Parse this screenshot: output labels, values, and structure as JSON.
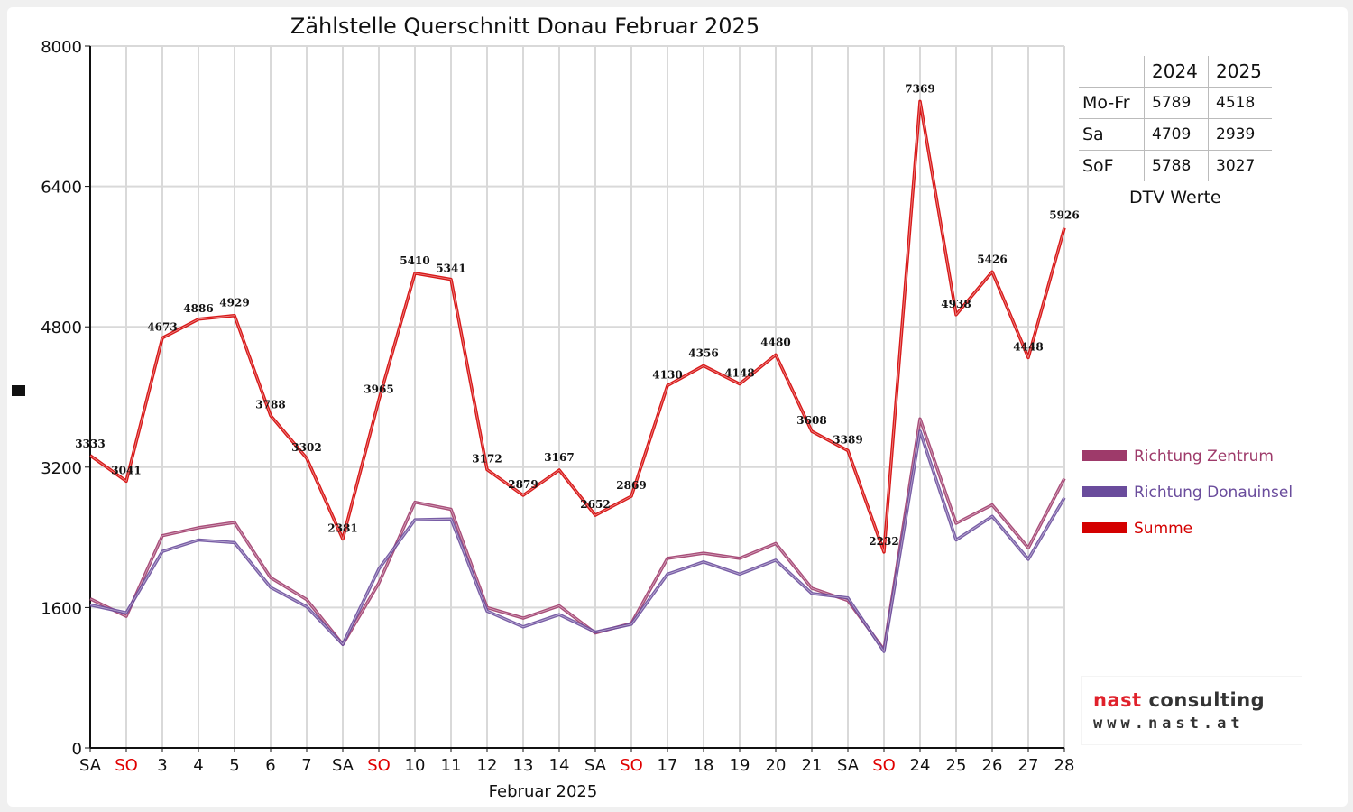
{
  "chart_data": {
    "type": "line",
    "title": "Zählstelle Querschnitt Donau Februar 2025",
    "xlabel": "Februar 2025",
    "ylabel": "",
    "ylim": [
      0,
      8000
    ],
    "yticks": [
      0,
      1600,
      3200,
      4800,
      6400,
      8000
    ],
    "grid": true,
    "legend_position": "right",
    "categories": [
      "SA",
      "SO",
      "3",
      "4",
      "5",
      "6",
      "7",
      "SA",
      "SO",
      "10",
      "11",
      "12",
      "13",
      "14",
      "SA",
      "SO",
      "17",
      "18",
      "19",
      "20",
      "21",
      "SA",
      "SO",
      "24",
      "25",
      "26",
      "27",
      "28"
    ],
    "red_categories": [
      1,
      8,
      15,
      22
    ],
    "series": [
      {
        "name": "Richtung Zentrum",
        "color": "#9e3a6a",
        "values": [
          1700,
          1500,
          2420,
          2510,
          2570,
          1940,
          1690,
          1180,
          1880,
          2800,
          2720,
          1600,
          1480,
          1620,
          1310,
          1420,
          2160,
          2220,
          2160,
          2330,
          1820,
          1680,
          1120,
          3750,
          2560,
          2770,
          2280,
          3070
        ]
      },
      {
        "name": "Richtung Donauinsel",
        "color": "#6a4c9c",
        "values": [
          1630,
          1540,
          2240,
          2370,
          2340,
          1830,
          1610,
          1180,
          2040,
          2600,
          2610,
          1560,
          1380,
          1520,
          1320,
          1410,
          1980,
          2120,
          1980,
          2140,
          1760,
          1710,
          1100,
          3610,
          2370,
          2640,
          2150,
          2850
        ]
      },
      {
        "name": "Summe",
        "color": "#d40000",
        "values": [
          3333,
          3041,
          4673,
          4886,
          4929,
          3788,
          3302,
          2381,
          3965,
          5410,
          5341,
          3172,
          2879,
          3167,
          2652,
          2869,
          4130,
          4356,
          4148,
          4480,
          3608,
          3389,
          2232,
          7369,
          4938,
          5426,
          4448,
          5926
        ]
      }
    ]
  },
  "dtv_table": {
    "caption": "DTV Werte",
    "columns": [
      "2024",
      "2025"
    ],
    "rows": [
      {
        "label": "Mo-Fr",
        "v2024": "5789",
        "v2025": "4518"
      },
      {
        "label": "Sa",
        "v2024": "4709",
        "v2025": "2939"
      },
      {
        "label": "SoF",
        "v2024": "5788",
        "v2025": "3027"
      }
    ]
  },
  "logo": {
    "line1_part1": "nast",
    "line1_part2": " consulting",
    "line2": "www.nast.at"
  },
  "colors": {
    "weekend_label": "#e00000",
    "grid": "#d9d9d9",
    "axis": "#111111"
  }
}
